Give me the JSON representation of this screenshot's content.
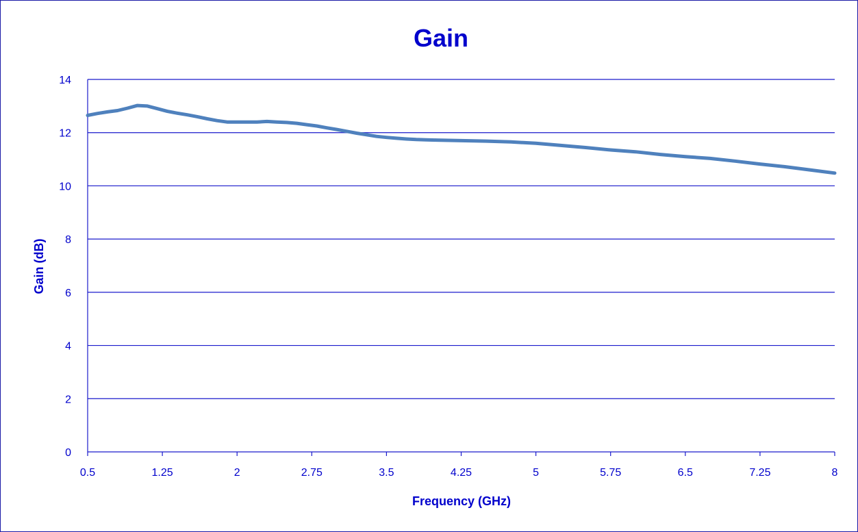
{
  "chart_data": {
    "type": "line",
    "title": "Gain",
    "xlabel": "Frequency (GHz)",
    "ylabel": "Gain (dB)",
    "xlim": [
      0.5,
      8
    ],
    "ylim": [
      0,
      14
    ],
    "x_ticks": [
      "0.5",
      "1.25",
      "2",
      "2.75",
      "3.5",
      "4.25",
      "5",
      "5.75",
      "6.5",
      "7.25",
      "8"
    ],
    "y_ticks": [
      "0",
      "2",
      "4",
      "6",
      "8",
      "10",
      "12",
      "14"
    ],
    "grid": "horizontal",
    "legend": "none",
    "series": [
      {
        "color": "#4f81bd",
        "x": [
          0.5,
          0.6,
          0.7,
          0.8,
          0.9,
          1.0,
          1.1,
          1.2,
          1.3,
          1.4,
          1.5,
          1.6,
          1.7,
          1.8,
          1.9,
          2.0,
          2.1,
          2.2,
          2.3,
          2.4,
          2.5,
          2.6,
          2.7,
          2.8,
          2.9,
          3.0,
          3.1,
          3.2,
          3.3,
          3.4,
          3.5,
          3.6,
          3.7,
          3.8,
          3.9,
          4.0,
          4.25,
          4.5,
          4.75,
          5.0,
          5.25,
          5.5,
          5.75,
          6.0,
          6.25,
          6.5,
          6.75,
          7.0,
          7.25,
          7.5,
          7.75,
          8.0
        ],
        "y": [
          12.65,
          12.72,
          12.78,
          12.83,
          12.92,
          13.02,
          13.0,
          12.9,
          12.8,
          12.73,
          12.67,
          12.6,
          12.52,
          12.45,
          12.4,
          12.4,
          12.4,
          12.4,
          12.42,
          12.4,
          12.38,
          12.35,
          12.3,
          12.25,
          12.18,
          12.12,
          12.05,
          11.98,
          11.92,
          11.86,
          11.82,
          11.79,
          11.76,
          11.74,
          11.73,
          11.72,
          11.7,
          11.68,
          11.65,
          11.6,
          11.52,
          11.44,
          11.35,
          11.28,
          11.18,
          11.1,
          11.03,
          10.93,
          10.82,
          10.72,
          10.6,
          10.48
        ]
      }
    ]
  },
  "style": {
    "text_color": "#0000cc",
    "grid_color": "#1a1acc",
    "border_color": "#1a1aa6"
  }
}
